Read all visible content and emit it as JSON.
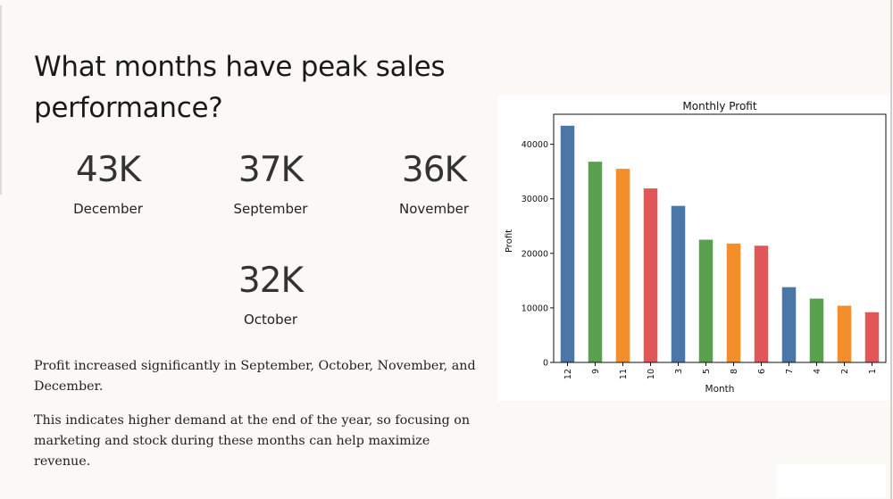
{
  "page": {
    "title": "What months have peak sales performance?",
    "kpis": [
      {
        "value": "43K",
        "label": "December"
      },
      {
        "value": "37K",
        "label": "September"
      },
      {
        "value": "36K",
        "label": "November"
      },
      {
        "value": "32K",
        "label": "October"
      }
    ],
    "paragraphs": [
      "Profit increased significantly in September, October, November, and December.",
      "This indicates higher demand at the end of the year, so focusing on marketing and stock during these months can help maximize revenue."
    ]
  },
  "chart_data": {
    "type": "bar",
    "title": "Monthly Profit",
    "xlabel": "Month",
    "ylabel": "Profit",
    "categories": [
      "12",
      "9",
      "11",
      "10",
      "3",
      "5",
      "8",
      "6",
      "7",
      "4",
      "2",
      "1"
    ],
    "values": [
      43400,
      36800,
      35500,
      31900,
      28700,
      22500,
      21800,
      21400,
      13800,
      11700,
      10400,
      9200
    ],
    "ylim": [
      0,
      45500
    ],
    "yticks": [
      0,
      10000,
      20000,
      30000,
      40000
    ],
    "ytick_labels": [
      "0",
      "10000",
      "20000",
      "30000",
      "40000"
    ],
    "colors": [
      "#4a76a8",
      "#59a14f",
      "#f28e2b",
      "#e15759"
    ],
    "grid": false,
    "legend": "none"
  }
}
